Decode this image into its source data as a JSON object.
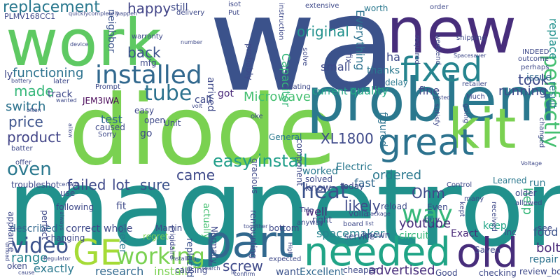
{
  "words": [
    {
      "id": "wa",
      "text": "wa",
      "color": "#3b528b"
    },
    {
      "id": "magnetron",
      "text": "magnetron",
      "color": "#21918c"
    },
    {
      "id": "diode",
      "text": "diode",
      "color": "#7ad151"
    },
    {
      "id": "work",
      "text": "work",
      "color": "#5ec962"
    },
    {
      "id": "new",
      "text": "new",
      "color": "#472d7b"
    },
    {
      "id": "problem",
      "text": "problem",
      "color": "#2a788e"
    },
    {
      "id": "kit",
      "text": "kit",
      "color": "#7ad151"
    },
    {
      "id": "part",
      "text": "part",
      "color": "#31688e"
    },
    {
      "id": "GE",
      "text": "GE",
      "color": "#a5db36"
    },
    {
      "id": "old",
      "text": "old",
      "color": "#472d7b"
    },
    {
      "id": "needed",
      "text": "needed",
      "color": "#20a486"
    },
    {
      "id": "great",
      "text": "great",
      "color": "#2c728e"
    },
    {
      "id": "fixed",
      "text": "fixed",
      "color": "#25848e"
    },
    {
      "id": "installed",
      "text": "installed",
      "color": "#31688e"
    },
    {
      "id": "replacement",
      "text": "replacement",
      "color": "#2a788e"
    },
    {
      "id": "way",
      "text": "way",
      "color": "#35b779"
    },
    {
      "id": "perfectly",
      "text": "perfectly",
      "color": "#44bf70"
    },
    {
      "id": "working",
      "text": "working",
      "color": "#7ad151"
    },
    {
      "id": "video",
      "text": "video",
      "color": "#3b528b"
    },
    {
      "id": "oven",
      "text": "oven",
      "color": "#2a788e"
    },
    {
      "id": "tube",
      "text": "tube",
      "color": "#2c728e"
    },
    {
      "id": "heat",
      "text": "heat",
      "color": "#3b528b"
    },
    {
      "id": "screw",
      "text": "screw",
      "color": "#3e4989"
    },
    {
      "id": "easy_install",
      "text": "easy install",
      "color": "#1f9e89"
    },
    {
      "id": "XL1800",
      "text": "XL1800",
      "color": "#3e4989"
    },
    {
      "id": "original",
      "text": "original",
      "color": "#21918c"
    },
    {
      "id": "happy",
      "text": "happy",
      "color": "#414487"
    },
    {
      "id": "back",
      "text": "back",
      "color": "#3b528b"
    },
    {
      "id": "functioning",
      "text": "functioning",
      "color": "#2c728e"
    },
    {
      "id": "made",
      "text": "made",
      "color": "#35b779"
    },
    {
      "id": "switch",
      "text": "switch",
      "color": "#2c728e"
    },
    {
      "id": "product",
      "text": "product",
      "color": "#414487"
    },
    {
      "id": "price",
      "text": "price",
      "color": "#3b528b"
    },
    {
      "id": "failed",
      "text": "failed",
      "color": "#3e4989"
    },
    {
      "id": "lot",
      "text": "lot",
      "color": "#3e4989"
    },
    {
      "id": "sure",
      "text": "sure",
      "color": "#3b528b"
    },
    {
      "id": "came",
      "text": "came",
      "color": "#3e4989"
    },
    {
      "id": "Microwave",
      "text": "Microwave",
      "color": "#44bf70"
    },
    {
      "id": "ordered",
      "text": "ordered",
      "color": "#2a788e"
    },
    {
      "id": "likely",
      "text": "likely",
      "color": "#3e4989"
    },
    {
      "id": "Ohm",
      "text": "Ohm",
      "color": "#3e4989"
    },
    {
      "id": "youtube",
      "text": "youtube",
      "color": "#472d7b"
    },
    {
      "id": "spacemaker",
      "text": "spacemaker",
      "color": "#26828e"
    },
    {
      "id": "range",
      "text": "range",
      "color": "#25848e"
    },
    {
      "id": "exactly",
      "text": "exactly",
      "color": "#2a788e"
    },
    {
      "id": "research",
      "text": "research",
      "color": "#31688e"
    },
    {
      "id": "install",
      "text": "install",
      "color": "#7ad151"
    },
    {
      "id": "advertised",
      "text": "advertised",
      "color": "#472d7b"
    },
    {
      "id": "took",
      "text": "took",
      "color": "#3e4989"
    },
    {
      "id": "running",
      "text": "running",
      "color": "#3e4989"
    },
    {
      "id": "help",
      "text": "help",
      "color": "#35b779"
    },
    {
      "id": "bolt",
      "text": "bolt",
      "color": "#482878"
    },
    {
      "id": "repair",
      "text": "repair",
      "color": "#2c728e"
    },
    {
      "id": "replace",
      "text": "replace",
      "color": "#21918c"
    },
    {
      "id": "result",
      "text": "result",
      "color": "#2a788e"
    },
    {
      "id": "described",
      "text": "described",
      "color": "#31688e"
    },
    {
      "id": "correct",
      "text": "correct",
      "color": "#3e4989"
    },
    {
      "id": "whole",
      "text": "whole",
      "color": "#3e4989"
    },
    {
      "id": "fast",
      "text": "fast",
      "color": "#31688e"
    },
    {
      "id": "well",
      "text": "well",
      "color": "#482878"
    },
    {
      "id": "know",
      "text": "know",
      "color": "#3e4989"
    },
    {
      "id": "circuit",
      "text": "circuit",
      "color": "#35b779"
    },
    {
      "id": "keep",
      "text": "keep",
      "color": "#20a486"
    },
    {
      "id": "Excellent",
      "text": "Excellent",
      "color": "#31688e"
    },
    {
      "id": "want",
      "text": "want",
      "color": "#3b528b"
    },
    {
      "id": "quality",
      "text": "quality",
      "color": "#22a884"
    },
    {
      "id": "current",
      "text": "current",
      "color": "#20a486"
    },
    {
      "id": "fine",
      "text": "fine",
      "color": "#3e4989"
    },
    {
      "id": "thanks",
      "text": "thanks",
      "color": "#2a788e"
    },
    {
      "id": "small",
      "text": "small",
      "color": "#3e4989"
    },
    {
      "id": "ha",
      "text": "ha",
      "color": "#3e4989"
    },
    {
      "id": "Everything",
      "text": "Everything",
      "color": "#2c728e"
    },
    {
      "id": "Capacitor",
      "text": "Capacitor",
      "color": "#35b779"
    },
    {
      "id": "worked",
      "text": "worked",
      "color": "#2a788e"
    },
    {
      "id": "Electric",
      "text": "Electric",
      "color": "#2a788e"
    },
    {
      "id": "figured",
      "text": "figured",
      "color": "#2c728e"
    },
    {
      "id": "Exact",
      "text": "Exact",
      "color": "#482878"
    },
    {
      "id": "neighbor",
      "text": "neighbor",
      "color": "#3b528b"
    },
    {
      "id": "replaced",
      "text": "replaced",
      "color": "#3b528b"
    },
    {
      "id": "actually",
      "text": "actually",
      "color": "#44bf70"
    },
    {
      "id": "meter",
      "text": "meter",
      "color": "#2a788e"
    },
    {
      "id": "test",
      "text": "test",
      "color": "#31688e"
    },
    {
      "id": "arrived",
      "text": "arrived",
      "color": "#3e4989"
    },
    {
      "id": "call",
      "text": "call",
      "color": "#3e4989"
    },
    {
      "id": "got",
      "text": "got",
      "color": "#482878"
    },
    {
      "id": "track",
      "text": "track",
      "color": "#3e4989"
    },
    {
      "id": "JEM3IWA",
      "text": "JEM3IWA",
      "color": "#440154"
    },
    {
      "id": "Learned",
      "text": "Learned",
      "color": "#2a788e"
    },
    {
      "id": "food",
      "text": "food",
      "color": "#3b528b"
    },
    {
      "id": "PLMV168CC1",
      "text": "PLMV168CC1",
      "color": "#3e4989"
    },
    {
      "id": "still",
      "text": "still",
      "color": "#3e4989"
    },
    {
      "id": "worth",
      "text": "worth",
      "color": "#2a788e"
    },
    {
      "id": "delay",
      "text": "delay",
      "color": "#2a788e"
    },
    {
      "id": "issue",
      "text": "issue",
      "color": "#31688e"
    },
    {
      "id": "run",
      "text": "run",
      "color": "#2a788e"
    },
    {
      "id": "mfg",
      "text": "mfg",
      "color": "#3e4989"
    },
    {
      "id": "go",
      "text": "go",
      "color": "#3e4989"
    },
    {
      "id": "fit",
      "text": "fit",
      "color": "#3e4989"
    },
    {
      "id": "Sorry",
      "text": "Sorry",
      "color": "#3e4989"
    },
    {
      "id": "Unit",
      "text": "Unit",
      "color": "#3e4989"
    },
    {
      "id": "caused",
      "text": "caused",
      "color": "#3e4989"
    },
    {
      "id": "open",
      "text": "open",
      "color": "#3e4989"
    },
    {
      "id": "easy",
      "text": "easy",
      "color": "#3e4989"
    },
    {
      "id": "Martin",
      "text": "Martin",
      "color": "#3e4989"
    },
    {
      "id": "regret",
      "text": "regret",
      "color": "#7ad151"
    },
    {
      "id": "causing",
      "text": "causing",
      "color": "#3e4989"
    },
    {
      "id": "Inc",
      "text": "Inc",
      "color": "#3e4989"
    },
    {
      "id": "reload",
      "text": "reload",
      "color": "#3e4989"
    },
    {
      "id": "voila",
      "text": "voila",
      "color": "#3e4989"
    },
    {
      "id": "today",
      "text": "today",
      "color": "#3e4989"
    },
    {
      "id": "right",
      "text": "right",
      "color": "#3e4989"
    },
    {
      "id": "bottom",
      "text": "bottom",
      "color": "#3e4989"
    },
    {
      "id": "board",
      "text": "board",
      "color": "#3e4989"
    },
    {
      "id": "known",
      "text": "known",
      "color": "#3e4989"
    },
    {
      "id": "solved",
      "text": "solved",
      "color": "#3e4989"
    },
    {
      "id": "General",
      "text": "General",
      "color": "#2a788e"
    },
    {
      "id": "service",
      "text": "service",
      "color": "#3e4989"
    },
    {
      "id": "cheaper",
      "text": "cheaper",
      "color": "#3e4989"
    },
    {
      "id": "Good",
      "text": "Good",
      "color": "#3e4989"
    },
    {
      "id": "checking",
      "text": "checking",
      "color": "#3e4989"
    },
    {
      "id": "review_body",
      "text": "review_body",
      "color": "#3e4989"
    },
    {
      "id": "Saved",
      "text": "Saved",
      "color": "#3e4989"
    },
    {
      "id": "Even",
      "text": "Even",
      "color": "#3e4989"
    },
    {
      "id": "buy",
      "text": "buy",
      "color": "#3e4989"
    },
    {
      "id": "older",
      "text": "older",
      "color": "#3e4989"
    },
    {
      "id": "allowed",
      "text": "allowed",
      "color": "#3e4989"
    },
    {
      "id": "see",
      "text": "see",
      "color": "#3e4989"
    },
    {
      "id": "received",
      "text": "received",
      "color": "#3e4989"
    },
    {
      "id": "Control",
      "text": "Control",
      "color": "#3e4989"
    },
    {
      "id": "many",
      "text": "many",
      "color": "#3e4989"
    },
    {
      "id": "following",
      "text": "following",
      "color": "#3e4989"
    },
    {
      "id": "appliance",
      "text": "appliance",
      "color": "#3e4989"
    },
    {
      "id": "perfect",
      "text": "perfect",
      "color": "#3e4989"
    },
    {
      "id": "changing",
      "text": "changing",
      "color": "#3e4989"
    },
    {
      "id": "oken",
      "text": "oken",
      "color": "#3e4989"
    },
    {
      "id": "troubleshot",
      "text": "troubleshot",
      "color": "#3e4989"
    },
    {
      "id": "use",
      "text": "use",
      "color": "#3e4989"
    },
    {
      "id": "offer",
      "text": "offer",
      "color": "#3e4989"
    },
    {
      "id": "batter",
      "text": "batter",
      "color": "#3e4989"
    },
    {
      "id": "Frigidaire",
      "text": "Frigidaire",
      "color": "#3e4989"
    },
    {
      "id": "Normally",
      "text": "Normally",
      "color": "#3e4989"
    },
    {
      "id": "remounting",
      "text": "remounting",
      "color": "#3e4989"
    },
    {
      "id": "gracious",
      "text": "gracious",
      "color": "#3e4989"
    },
    {
      "id": "component",
      "text": "component",
      "color": "#3e4989"
    },
    {
      "id": "probably",
      "text": "probably",
      "color": "#3e4989"
    },
    {
      "id": "instruction",
      "text": "instruction",
      "color": "#3e4989"
    },
    {
      "id": "heating",
      "text": "heating",
      "color": "#3e4989"
    },
    {
      "id": "fix",
      "text": "fix",
      "color": "#3e4989"
    },
    {
      "id": "solve",
      "text": "solve",
      "color": "#3e4989"
    },
    {
      "id": "extensive",
      "text": "extensive",
      "color": "#3e4989"
    },
    {
      "id": "required",
      "text": "required",
      "color": "#3e4989"
    },
    {
      "id": "order",
      "text": "order",
      "color": "#3e4989"
    },
    {
      "id": "weekend",
      "text": "weekend",
      "color": "#3e4989"
    },
    {
      "id": "shipping",
      "text": "shipping",
      "color": "#3e4989"
    },
    {
      "id": "INDEED",
      "text": "INDEED",
      "color": "#3e4989"
    },
    {
      "id": "outcome",
      "text": "outcome",
      "color": "#3e4989"
    },
    {
      "id": "perhaps",
      "text": "perhaps",
      "color": "#3e4989"
    },
    {
      "id": "Spacesaver",
      "text": "Spacesaver",
      "color": "#3e4989"
    },
    {
      "id": "retailer",
      "text": "retailer",
      "color": "#3e4989"
    },
    {
      "id": "Much",
      "text": "Much",
      "color": "#3e4989"
    },
    {
      "id": "tested",
      "text": "tested",
      "color": "#3e4989"
    },
    {
      "id": "satisfy",
      "text": "satisfy",
      "color": "#3e4989"
    },
    {
      "id": "changed",
      "text": "changed",
      "color": "#3e4989"
    },
    {
      "id": "Voltage",
      "text": "Voltage",
      "color": "#3e4989"
    },
    {
      "id": "quickly",
      "text": "quickly",
      "color": "#3e4989"
    },
    {
      "id": "completely",
      "text": "completely",
      "color": "#3e4989"
    },
    {
      "id": "happen",
      "text": "happen",
      "color": "#3e4989"
    },
    {
      "id": "delivery",
      "text": "delivery",
      "color": "#3e4989"
    },
    {
      "id": "Put",
      "text": "Put",
      "color": "#3e4989"
    },
    {
      "id": "isot",
      "text": "isot",
      "color": "#3e4989"
    },
    {
      "id": "device",
      "text": "device",
      "color": "#3e4989"
    },
    {
      "id": "warranty",
      "text": "warranty",
      "color": "#3e4989"
    },
    {
      "id": "number",
      "text": "number",
      "color": "#3e4989"
    },
    {
      "id": "battery",
      "text": "battery",
      "color": "#3e4989"
    },
    {
      "id": "later",
      "text": "later",
      "color": "#3e4989"
    },
    {
      "id": "Prompt",
      "text": "Prompt",
      "color": "#3e4989"
    },
    {
      "id": "volt",
      "text": "volt",
      "color": "#3e4989"
    },
    {
      "id": "wanted",
      "text": "wanted",
      "color": "#3e4989"
    },
    {
      "id": "often",
      "text": "often",
      "color": "#3e4989"
    },
    {
      "id": "allow",
      "text": "allow",
      "color": "#3e4989"
    },
    {
      "id": "ly",
      "text": "ly",
      "color": "#3e4989"
    },
    {
      "id": "THe",
      "text": "THe",
      "color": "#3e4989"
    },
    {
      "id": "oke",
      "text": "oke",
      "color": "#3e4989"
    },
    {
      "id": "certain",
      "text": "certain",
      "color": "#3e4989"
    },
    {
      "id": "package",
      "text": "package",
      "color": "#3e4989"
    },
    {
      "id": "list",
      "text": "list",
      "color": "#3e4989"
    },
    {
      "id": "anyway",
      "text": "anyway",
      "color": "#3e4989"
    },
    {
      "id": "together",
      "text": "together",
      "color": "#3e4989"
    },
    {
      "id": "expected",
      "text": "expected",
      "color": "#3e4989"
    },
    {
      "id": "search",
      "text": "search",
      "color": "#3e4989"
    },
    {
      "id": "installing",
      "text": "installing",
      "color": "#3e4989"
    },
    {
      "id": "Regulator",
      "text": "Regulator",
      "color": "#3e4989"
    },
    {
      "id": "High",
      "text": "High",
      "color": "#3e4989"
    },
    {
      "id": "unload",
      "text": "unload",
      "color": "#3e4989"
    },
    {
      "id": "cause",
      "text": "cause",
      "color": "#3e4989"
    },
    {
      "id": "always",
      "text": "always",
      "color": "#3e4989"
    },
    {
      "id": "confirm",
      "text": "confirm",
      "color": "#3e4989"
    },
    {
      "id": "kept",
      "text": "kept",
      "color": "#3e4989"
    },
    {
      "id": "going",
      "text": "going",
      "color": "#3e4989"
    },
    {
      "id": "le",
      "text": "le",
      "color": "#3e4989"
    }
  ]
}
